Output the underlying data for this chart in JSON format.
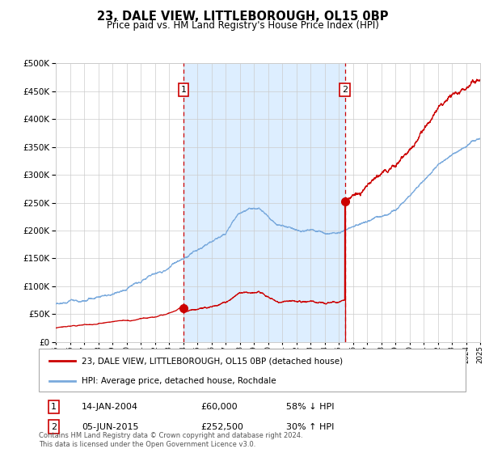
{
  "title": "23, DALE VIEW, LITTLEBOROUGH, OL15 0BP",
  "subtitle": "Price paid vs. HM Land Registry's House Price Index (HPI)",
  "legend_line1": "23, DALE VIEW, LITTLEBOROUGH, OL15 0BP (detached house)",
  "legend_line2": "HPI: Average price, detached house, Rochdale",
  "annotation1_date": "14-JAN-2004",
  "annotation1_price": "£60,000",
  "annotation1_hpi": "58% ↓ HPI",
  "annotation2_date": "05-JUN-2015",
  "annotation2_price": "£252,500",
  "annotation2_hpi": "30% ↑ HPI",
  "footer": "Contains HM Land Registry data © Crown copyright and database right 2024.\nThis data is licensed under the Open Government Licence v3.0.",
  "year_start": 1995,
  "year_end": 2025,
  "ylim_max": 500000,
  "ytick_step": 50000,
  "sale1_year": 2004.04,
  "sale1_price": 60000,
  "sale2_year": 2015.43,
  "sale2_price": 252500,
  "red_line_color": "#cc0000",
  "blue_line_color": "#7aaadd",
  "grid_color": "#cccccc",
  "shade_color": "#ddeeff"
}
